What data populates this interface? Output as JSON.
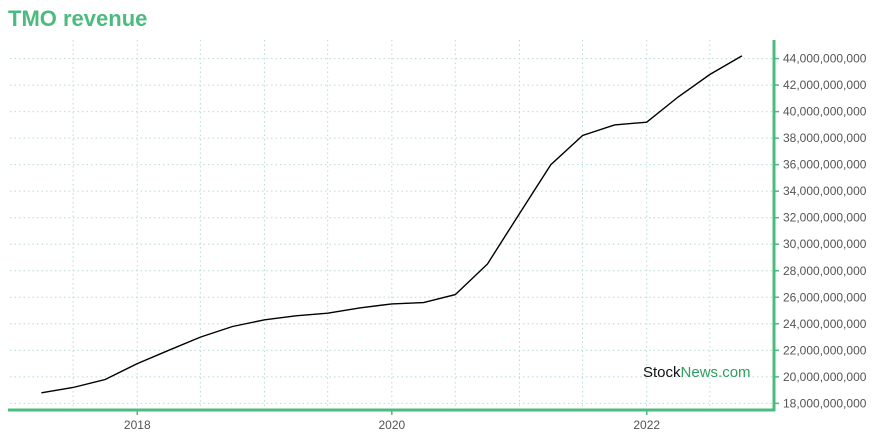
{
  "title": "TMO revenue",
  "watermark": {
    "part1": "Stock",
    "part2": "News.com"
  },
  "colors": {
    "accent": "#4cbb7f",
    "line": "#000000",
    "grid": "#b7ddd0"
  },
  "chart_data": {
    "type": "line",
    "title": "TMO revenue",
    "xlabel": "",
    "ylabel": "",
    "x_ticks": [
      "2018",
      "2020",
      "2022"
    ],
    "y_ticks": [
      18000000000,
      20000000000,
      22000000000,
      24000000000,
      26000000000,
      28000000000,
      30000000000,
      32000000000,
      34000000000,
      36000000000,
      38000000000,
      40000000000,
      42000000000,
      44000000000
    ],
    "y_tick_labels": [
      "18,000,000,000",
      "20,000,000,000",
      "22,000,000,000",
      "24,000,000,000",
      "26,000,000,000",
      "28,000,000,000",
      "30,000,000,000",
      "32,000,000,000",
      "34,000,000,000",
      "36,000,000,000",
      "38,000,000,000",
      "40,000,000,000",
      "42,000,000,000",
      "44,000,000,000"
    ],
    "ylim": [
      17500000000,
      45400000000
    ],
    "xlim": [
      "2017-01-01",
      "2023-01-01"
    ],
    "grid": true,
    "y_axis_position": "right",
    "series": [
      {
        "x": [
          "2017-04-01",
          "2017-07-01",
          "2017-10-01",
          "2018-01-01",
          "2018-04-01",
          "2018-07-01",
          "2018-10-01",
          "2019-01-01",
          "2019-04-01",
          "2019-07-01",
          "2019-10-01",
          "2020-01-01",
          "2020-04-01",
          "2020-07-01",
          "2020-10-01",
          "2021-01-01",
          "2021-04-01",
          "2021-07-01",
          "2021-10-01",
          "2022-01-01",
          "2022-04-01",
          "2022-07-01",
          "2022-10-01"
        ],
        "values": [
          18800000000,
          19200000000,
          19800000000,
          21000000000,
          22000000000,
          23000000000,
          23800000000,
          24300000000,
          24600000000,
          24800000000,
          25200000000,
          25500000000,
          25600000000,
          26200000000,
          28500000000,
          32300000000,
          36000000000,
          38200000000,
          39000000000,
          39200000000,
          41100000000,
          42800000000,
          44200000000
        ]
      }
    ]
  }
}
